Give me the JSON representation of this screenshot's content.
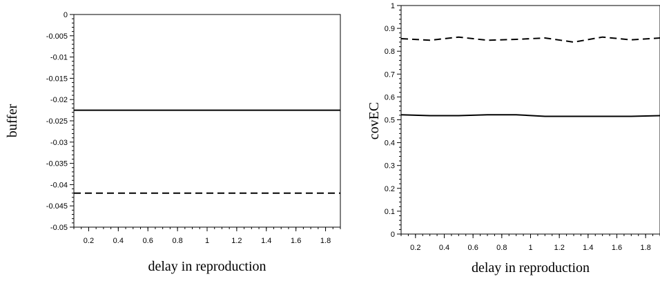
{
  "chart_data": [
    {
      "type": "line",
      "title": "",
      "xlabel": "delay in reproduction",
      "ylabel": "buffer",
      "xlim": [
        0.1,
        1.9
      ],
      "ylim": [
        -0.05,
        0
      ],
      "grid": false,
      "x_ticks": [
        0.2,
        0.4,
        0.6,
        0.8,
        1,
        1.2,
        1.4,
        1.6,
        1.8
      ],
      "x_tick_labels": [
        "0.2",
        "0.4",
        "0.6",
        "0.8",
        "1",
        "1.2",
        "1.4",
        "1.6",
        "1.8"
      ],
      "y_ticks": [
        0,
        -0.005,
        -0.01,
        -0.015,
        -0.02,
        -0.025,
        -0.03,
        -0.035,
        -0.04,
        -0.045,
        -0.05
      ],
      "y_tick_labels": [
        "0",
        "-0.005",
        "-0.01",
        "-0.015",
        "-0.02",
        "-0.025",
        "-0.03",
        "-0.035",
        "-0.04",
        "-0.045",
        "-0.05"
      ],
      "series": [
        {
          "style": "solid",
          "x": [
            0.1,
            1.9
          ],
          "values": [
            -0.0225,
            -0.0225
          ]
        },
        {
          "style": "dashed",
          "x": [
            0.1,
            1.9
          ],
          "values": [
            -0.042,
            -0.042
          ]
        }
      ]
    },
    {
      "type": "line",
      "title": "",
      "xlabel": "delay in reproduction",
      "ylabel": "covEC",
      "xlim": [
        0.1,
        1.9
      ],
      "ylim": [
        0,
        1
      ],
      "grid": false,
      "x_ticks": [
        0.2,
        0.4,
        0.6,
        0.8,
        1,
        1.2,
        1.4,
        1.6,
        1.8
      ],
      "x_tick_labels": [
        "0.2",
        "0.4",
        "0.6",
        "0.8",
        "1",
        "1.2",
        "1.4",
        "1.6",
        "1.8"
      ],
      "y_ticks": [
        1,
        0.9,
        0.8,
        0.7,
        0.6,
        0.5,
        0.4,
        0.3,
        0.2,
        0.1,
        0
      ],
      "y_tick_labels": [
        "1",
        "0.9",
        "0.8",
        "0.7",
        "0.6",
        "0.5",
        "0.4",
        "0.3",
        "0.2",
        "0.1",
        "0"
      ],
      "series": [
        {
          "style": "dashed",
          "x": [
            0.1,
            0.3,
            0.5,
            0.7,
            0.9,
            1.1,
            1.3,
            1.5,
            1.7,
            1.9
          ],
          "values": [
            0.855,
            0.848,
            0.862,
            0.848,
            0.852,
            0.858,
            0.84,
            0.862,
            0.85,
            0.858
          ]
        },
        {
          "style": "solid",
          "x": [
            0.1,
            0.3,
            0.5,
            0.7,
            0.9,
            1.1,
            1.3,
            1.5,
            1.7,
            1.9
          ],
          "values": [
            0.522,
            0.518,
            0.518,
            0.522,
            0.522,
            0.515,
            0.515,
            0.515,
            0.515,
            0.518
          ]
        }
      ]
    }
  ]
}
